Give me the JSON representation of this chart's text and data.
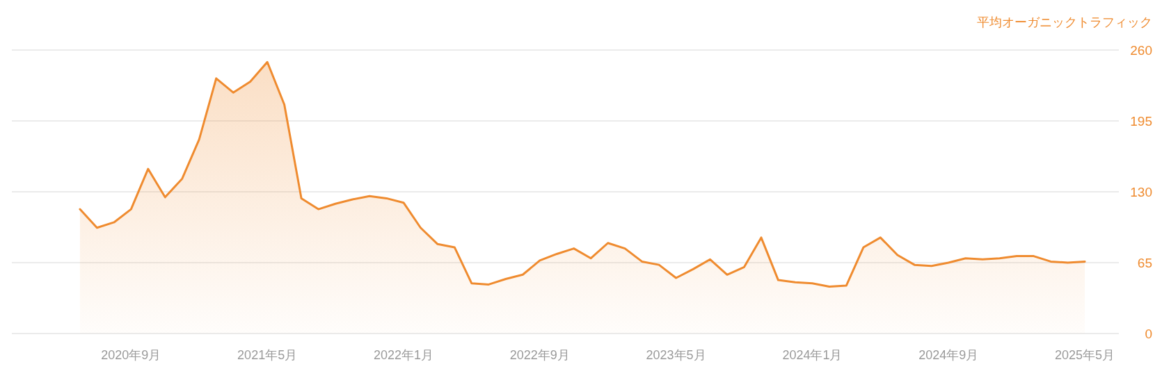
{
  "chart_data": {
    "type": "area",
    "ylabel": "平均オーガニックトラフィック",
    "color": "#ef8b2f",
    "grid": "y",
    "x": [
      "2020-06",
      "2020-07",
      "2020-08",
      "2020-09",
      "2020-10",
      "2020-11",
      "2020-12",
      "2021-01",
      "2021-02",
      "2021-03",
      "2021-04",
      "2021-05",
      "2021-06",
      "2021-07",
      "2021-08",
      "2021-09",
      "2021-10",
      "2021-11",
      "2021-12",
      "2022-01",
      "2022-02",
      "2022-03",
      "2022-04",
      "2022-05",
      "2022-06",
      "2022-07",
      "2022-08",
      "2022-09",
      "2022-10",
      "2022-11",
      "2022-12",
      "2023-01",
      "2023-02",
      "2023-03",
      "2023-04",
      "2023-05",
      "2023-06",
      "2023-07",
      "2023-08",
      "2023-09",
      "2023-10",
      "2023-11",
      "2023-12",
      "2024-01",
      "2024-02",
      "2024-03",
      "2024-04",
      "2024-05",
      "2024-06",
      "2024-07",
      "2024-08",
      "2024-09",
      "2024-10",
      "2024-11",
      "2024-12",
      "2025-01",
      "2025-02",
      "2025-03",
      "2025-04",
      "2025-05"
    ],
    "values": [
      114,
      97,
      102,
      114,
      151,
      125,
      142,
      178,
      234,
      221,
      231,
      249,
      210,
      124,
      114,
      119,
      123,
      126,
      124,
      120,
      97,
      82,
      79,
      46,
      45,
      50,
      54,
      67,
      73,
      78,
      69,
      83,
      78,
      66,
      63,
      51,
      59,
      68,
      54,
      61,
      88,
      49,
      47,
      46,
      43,
      44,
      79,
      88,
      72,
      63,
      62,
      65,
      69,
      68,
      69,
      71,
      71,
      66,
      65,
      66
    ],
    "xlim": [
      "2020-02",
      "2025-07"
    ],
    "ylim": [
      0,
      260
    ],
    "xticks": [
      {
        "value": "2020-09",
        "label": "2020年9月"
      },
      {
        "value": "2021-05",
        "label": "2021年5月"
      },
      {
        "value": "2022-01",
        "label": "2022年1月"
      },
      {
        "value": "2022-09",
        "label": "2022年9月"
      },
      {
        "value": "2023-05",
        "label": "2023年5月"
      },
      {
        "value": "2024-01",
        "label": "2024年1月"
      },
      {
        "value": "2024-09",
        "label": "2024年9月"
      },
      {
        "value": "2025-05",
        "label": "2025年5月"
      }
    ],
    "yticks": [
      0,
      65,
      130,
      195,
      260
    ]
  }
}
